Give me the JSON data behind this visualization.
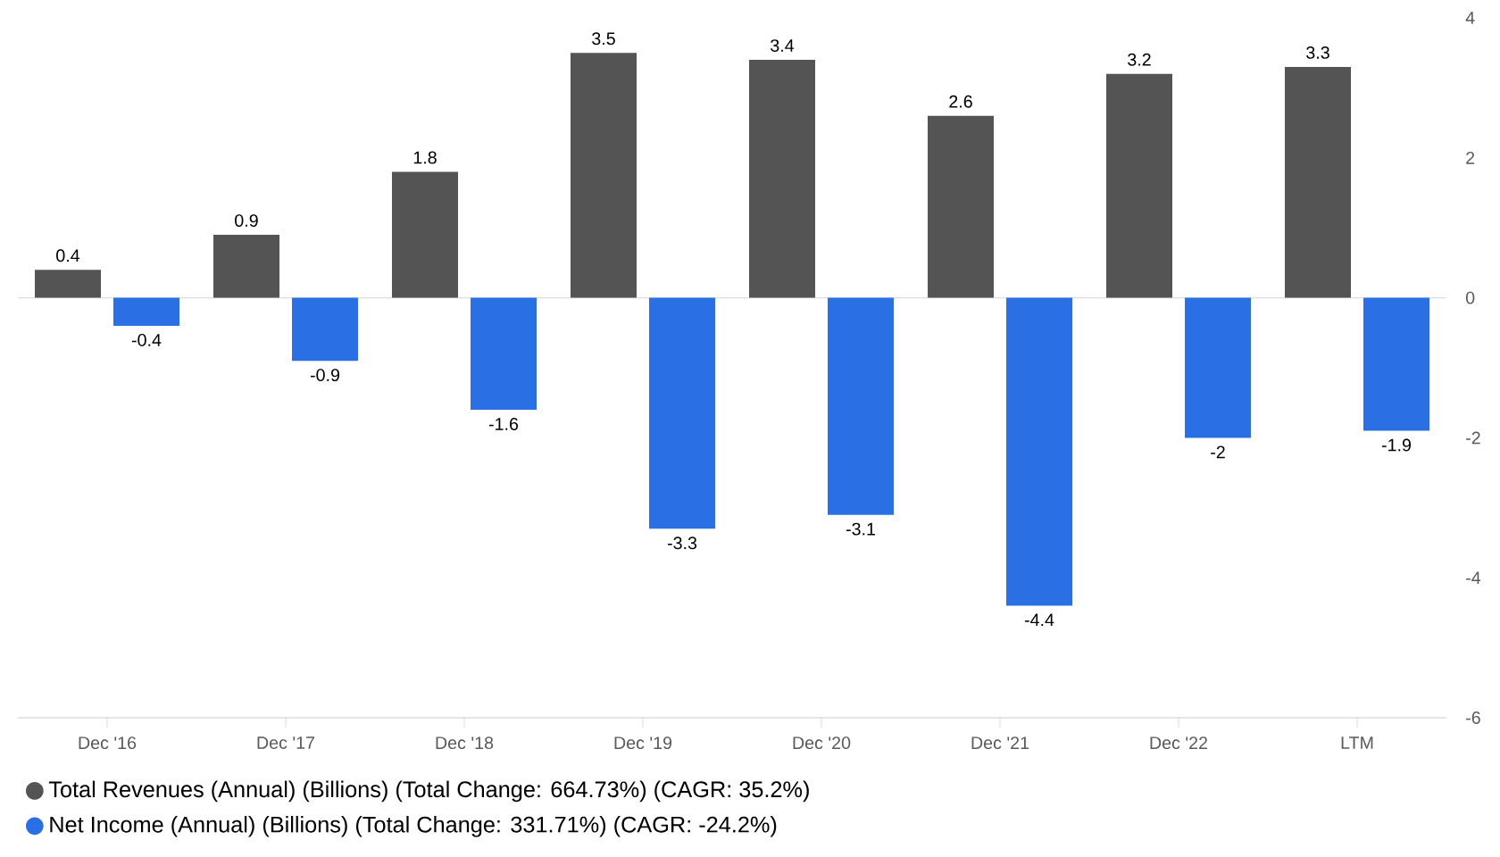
{
  "chart_data": {
    "type": "bar",
    "categories": [
      "Dec '16",
      "Dec '17",
      "Dec '18",
      "Dec '19",
      "Dec '20",
      "Dec '21",
      "Dec '22",
      "LTM"
    ],
    "series": [
      {
        "name": "Total Revenues (Annual) (Billions) (Total Change: 664.73%) (CAGR: 35.2%)",
        "color": "#545454",
        "values": [
          0.4,
          0.9,
          1.8,
          3.5,
          3.4,
          2.6,
          3.2,
          3.3
        ]
      },
      {
        "name": "Net Income (Annual) (Billions) (Total Change: 331.71%) (CAGR: -24.2%)",
        "color": "#2a6fe3",
        "values": [
          -0.4,
          -0.9,
          -1.6,
          -3.3,
          -3.1,
          -4.4,
          -2,
          -1.9
        ]
      }
    ],
    "ylim": [
      -6,
      4
    ],
    "yticks": [
      -6,
      -4,
      -2,
      0,
      2,
      4
    ],
    "data_labels": true,
    "legend": "bottom",
    "ref_lines": [
      {
        "axis": "y",
        "value": 0,
        "color": "#dddddd"
      }
    ]
  }
}
